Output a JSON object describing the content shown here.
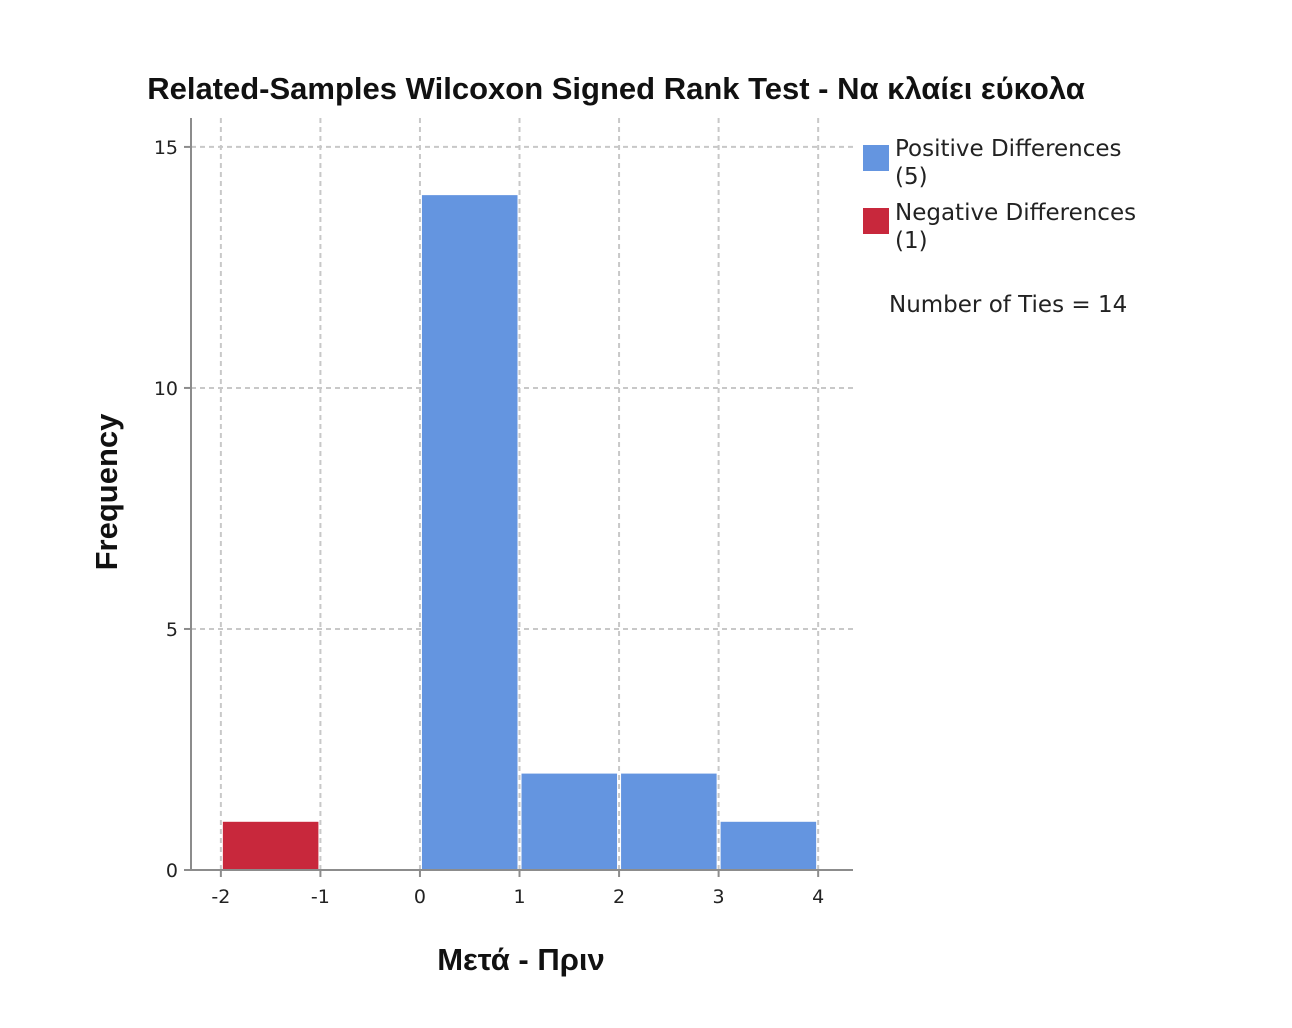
{
  "chart_data": {
    "type": "bar",
    "title": "Related-Samples Wilcoxon Signed Rank Test - Να κλαίει εύκολα",
    "xlabel": "Μετά - Πριν",
    "ylabel": "Frequency",
    "x_ticks": [
      -2,
      -1,
      0,
      1,
      2,
      3,
      4
    ],
    "y_ticks": [
      0,
      5,
      10,
      15
    ],
    "xlim": [
      -2.3,
      4.35
    ],
    "ylim": [
      0,
      15.6
    ],
    "grid": true,
    "legend_position": "right",
    "bins": [
      {
        "x0": -2,
        "x1": -1,
        "value": 1,
        "series": "negative"
      },
      {
        "x0": 0,
        "x1": 1,
        "value": 14,
        "series": "positive"
      },
      {
        "x0": 1,
        "x1": 2,
        "value": 2,
        "series": "positive"
      },
      {
        "x0": 2,
        "x1": 3,
        "value": 2,
        "series": "positive"
      },
      {
        "x0": 3,
        "x1": 4,
        "value": 1,
        "series": "positive"
      }
    ],
    "series": [
      {
        "key": "positive",
        "name": "Positive Differences",
        "count_label": "(5)",
        "color": "#6495e0"
      },
      {
        "key": "negative",
        "name": "Negative Differences",
        "count_label": "(1)",
        "color": "#c8283c"
      }
    ],
    "annotation": "Number of Ties = 14"
  }
}
